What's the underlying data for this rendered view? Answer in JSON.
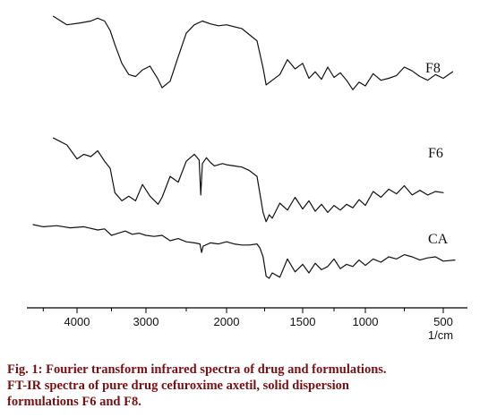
{
  "chart_data": {
    "type": "line",
    "title": "",
    "xlabel": "1/cm",
    "ylabel": "",
    "x_reversed": true,
    "xlim": [
      4650,
      450
    ],
    "xticks": [
      4000,
      3000,
      2000,
      1500,
      1000,
      500
    ],
    "x_tick_labels": [
      "4000",
      "3000",
      "2000",
      "1500",
      "1000",
      "500"
    ],
    "grid": false,
    "legend": "none",
    "series": [
      {
        "name": "F8",
        "x": [
          4350,
          4150,
          3950,
          3800,
          3700,
          3600,
          3520,
          3450,
          3350,
          3250,
          3150,
          3050,
          2950,
          2850,
          2800,
          2700,
          2600,
          2500,
          2400,
          2300,
          2200,
          2100,
          2000,
          1900,
          1800,
          1760,
          1740,
          1700,
          1650,
          1600,
          1550,
          1500,
          1450,
          1400,
          1350,
          1300,
          1250,
          1200,
          1150,
          1100,
          1050,
          1000,
          950,
          900,
          850,
          800,
          750,
          700,
          650,
          600,
          550,
          500,
          460
        ],
        "y": [
          0.95,
          0.86,
          0.88,
          0.9,
          0.93,
          0.9,
          0.8,
          0.65,
          0.45,
          0.33,
          0.31,
          0.38,
          0.42,
          0.28,
          0.19,
          0.26,
          0.52,
          0.77,
          0.86,
          0.9,
          0.87,
          0.85,
          0.86,
          0.82,
          0.69,
          0.4,
          0.22,
          0.27,
          0.33,
          0.49,
          0.39,
          0.45,
          0.29,
          0.36,
          0.28,
          0.41,
          0.3,
          0.35,
          0.27,
          0.17,
          0.25,
          0.21,
          0.34,
          0.27,
          0.29,
          0.32,
          0.41,
          0.37,
          0.31,
          0.27,
          0.33,
          0.29,
          0.36
        ]
      },
      {
        "name": "F6",
        "x": [
          4350,
          4150,
          4000,
          3900,
          3800,
          3700,
          3600,
          3520,
          3450,
          3350,
          3250,
          3150,
          3050,
          2950,
          2850,
          2800,
          2700,
          2600,
          2500,
          2400,
          2340,
          2320,
          2300,
          2250,
          2200,
          2150,
          2100,
          2050,
          2000,
          1950,
          1900,
          1850,
          1800,
          1760,
          1740,
          1720,
          1700,
          1650,
          1600,
          1550,
          1500,
          1450,
          1400,
          1350,
          1300,
          1250,
          1200,
          1150,
          1100,
          1050,
          1000,
          950,
          900,
          850,
          800,
          750,
          700,
          650,
          600,
          550,
          500
        ],
        "y": [
          0.66,
          0.6,
          0.48,
          0.52,
          0.5,
          0.55,
          0.46,
          0.4,
          0.19,
          0.12,
          0.16,
          0.12,
          0.26,
          0.16,
          0.09,
          0.15,
          0.33,
          0.28,
          0.46,
          0.52,
          0.47,
          0.17,
          0.44,
          0.49,
          0.45,
          0.42,
          0.43,
          0.44,
          0.43,
          0.42,
          0.41,
          0.38,
          0.33,
          0.02,
          -0.06,
          0.0,
          -0.03,
          0.1,
          0.04,
          0.15,
          0.05,
          0.12,
          0.03,
          0.09,
          0.02,
          0.08,
          0.04,
          0.09,
          0.06,
          0.13,
          0.08,
          0.2,
          0.15,
          0.22,
          0.18,
          0.25,
          0.17,
          0.21,
          0.17,
          0.2,
          0.19
        ]
      },
      {
        "name": "CA",
        "x": [
          4650,
          4500,
          4300,
          4100,
          3900,
          3700,
          3600,
          3500,
          3400,
          3300,
          3200,
          3100,
          3000,
          2900,
          2800,
          2700,
          2600,
          2500,
          2400,
          2330,
          2310,
          2290,
          2200,
          2100,
          2000,
          1950,
          1900,
          1850,
          1800,
          1780,
          1760,
          1740,
          1720,
          1700,
          1650,
          1600,
          1550,
          1500,
          1450,
          1400,
          1350,
          1300,
          1250,
          1200,
          1150,
          1100,
          1050,
          1000,
          950,
          900,
          850,
          800,
          750,
          700,
          650,
          600,
          550,
          500,
          450
        ],
        "y": [
          0.3,
          0.28,
          0.29,
          0.27,
          0.28,
          0.25,
          0.26,
          0.2,
          0.22,
          0.24,
          0.21,
          0.22,
          0.2,
          0.19,
          0.2,
          0.15,
          0.17,
          0.14,
          0.13,
          0.12,
          0.04,
          0.1,
          0.13,
          0.12,
          0.14,
          0.12,
          0.11,
          0.11,
          0.12,
          0.08,
          0.0,
          -0.18,
          -0.2,
          -0.15,
          -0.19,
          -0.02,
          -0.14,
          -0.07,
          -0.15,
          -0.06,
          -0.12,
          -0.09,
          -0.02,
          -0.11,
          -0.07,
          -0.09,
          -0.03,
          -0.08,
          -0.02,
          -0.05,
          0.0,
          -0.02,
          0.02,
          0.0,
          -0.03,
          -0.01,
          0.0,
          -0.04,
          -0.03
        ]
      }
    ]
  },
  "caption": {
    "line1": "Fig. 1: Fourier transform infrared spectra of drug and formulations.",
    "line2": "FT-IR spectra of pure drug cefuroxime axetil, solid dispersion",
    "line3": "formulations F6 and F8."
  },
  "colors": {
    "line": "#111111",
    "caption": "#7a0f12"
  }
}
